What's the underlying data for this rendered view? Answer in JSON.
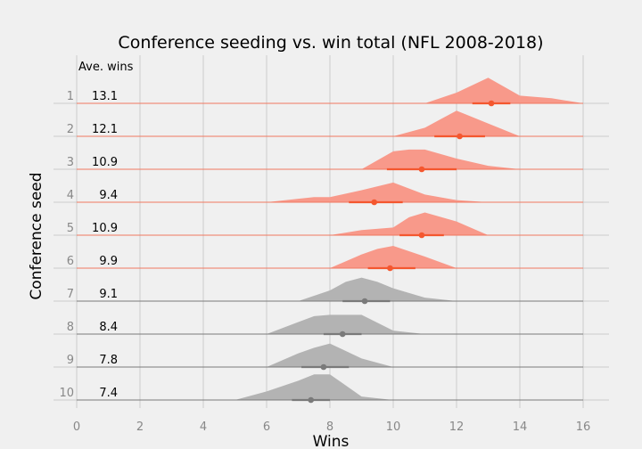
{
  "chart_data": {
    "type": "area",
    "title": "Conference seeding vs. win total (NFL 2008-2018)",
    "xlabel": "Wins",
    "ylabel": "Conference seed",
    "xlim": [
      0,
      16.8
    ],
    "xticks": [
      0,
      2,
      4,
      6,
      8,
      10,
      12,
      14,
      16
    ],
    "grid": true,
    "column_header": "Ave. wins",
    "colors": {
      "playoff_seed": "#f8998a",
      "playoff_line": "#f07860",
      "playoff_dot": "#f4572f",
      "non_playoff": "#b3b3b3",
      "non_playoff_line": "#7a7a7a",
      "background": "#f0f0f0",
      "grid": "#cbcbcb"
    },
    "seeds": [
      {
        "seed": "1",
        "avg_label": "13.1",
        "mean": 13.1,
        "ci": [
          12.5,
          13.7
        ],
        "dist_x": [
          11,
          12,
          13,
          14,
          15,
          16
        ],
        "dist_y": [
          0,
          0.25,
          0.6,
          0.18,
          0.12,
          0
        ]
      },
      {
        "seed": "2",
        "avg_label": "12.1",
        "mean": 12.1,
        "ci": [
          11.3,
          12.9
        ],
        "dist_x": [
          10,
          11,
          11.5,
          12,
          13,
          14
        ],
        "dist_y": [
          0,
          0.2,
          0.4,
          0.6,
          0.3,
          0
        ]
      },
      {
        "seed": "3",
        "avg_label": "10.9",
        "mean": 10.9,
        "ci": [
          9.8,
          12.0
        ],
        "dist_x": [
          9,
          10,
          10.5,
          11,
          12,
          13,
          14
        ],
        "dist_y": [
          0,
          0.42,
          0.46,
          0.46,
          0.25,
          0.08,
          0
        ]
      },
      {
        "seed": "4",
        "avg_label": "9.4",
        "mean": 9.4,
        "ci": [
          8.6,
          10.3
        ],
        "dist_x": [
          6,
          7,
          7.5,
          8,
          9,
          10,
          11,
          12,
          13
        ],
        "dist_y": [
          0,
          0.08,
          0.12,
          0.12,
          0.28,
          0.46,
          0.18,
          0.05,
          0
        ]
      },
      {
        "seed": "5",
        "avg_label": "10.9",
        "mean": 10.9,
        "ci": [
          10.2,
          11.6
        ],
        "dist_x": [
          8,
          9,
          10,
          10.5,
          11,
          12,
          13
        ],
        "dist_y": [
          0,
          0.12,
          0.18,
          0.42,
          0.53,
          0.32,
          0
        ]
      },
      {
        "seed": "6",
        "avg_label": "9.9",
        "mean": 9.9,
        "ci": [
          9.2,
          10.7
        ],
        "dist_x": [
          8,
          9,
          9.5,
          10,
          11,
          12
        ],
        "dist_y": [
          0,
          0.32,
          0.45,
          0.52,
          0.27,
          0
        ]
      },
      {
        "seed": "7",
        "avg_label": "9.1",
        "mean": 9.1,
        "ci": [
          8.4,
          9.9
        ],
        "dist_x": [
          7,
          8,
          8.5,
          9,
          9.5,
          10,
          11,
          12
        ],
        "dist_y": [
          0,
          0.25,
          0.45,
          0.55,
          0.45,
          0.3,
          0.08,
          0
        ]
      },
      {
        "seed": "8",
        "avg_label": "8.4",
        "mean": 8.4,
        "ci": [
          7.8,
          9.0
        ],
        "dist_x": [
          6,
          7,
          7.5,
          8,
          9,
          10,
          11
        ],
        "dist_y": [
          0,
          0.28,
          0.42,
          0.45,
          0.45,
          0.08,
          0
        ]
      },
      {
        "seed": "9",
        "avg_label": "7.8",
        "mean": 7.8,
        "ci": [
          7.1,
          8.6
        ],
        "dist_x": [
          6,
          7,
          7.5,
          8,
          9,
          10
        ],
        "dist_y": [
          0,
          0.32,
          0.45,
          0.55,
          0.2,
          0
        ]
      },
      {
        "seed": "10",
        "avg_label": "7.4",
        "mean": 7.4,
        "ci": [
          6.8,
          8.0
        ],
        "dist_x": [
          5,
          6,
          7,
          7.5,
          8,
          9,
          10
        ],
        "dist_y": [
          0,
          0.2,
          0.45,
          0.6,
          0.6,
          0.08,
          0
        ]
      }
    ],
    "playoff_seed_count": 6
  }
}
